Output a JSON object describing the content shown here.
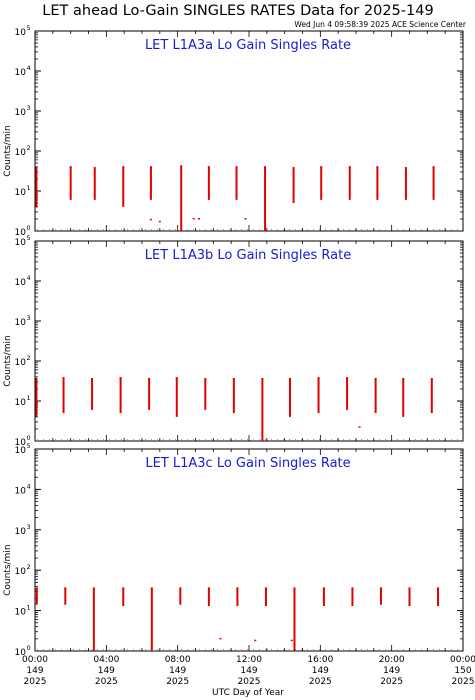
{
  "header": {
    "title": "LET ahead Lo-Gain SINGLES RATES Data for 2025-149",
    "timestamp": "Wed Jun  4 09:58:39 2025 ACE Science Center"
  },
  "colors": {
    "data": "#e00000",
    "panel_title": "#1a1ad0",
    "axes": "#000000"
  },
  "chart_data": [
    {
      "type": "line",
      "title": "LET L1A3a Lo Gain Singles Rate",
      "ylabel": "Counts/min",
      "yscale": "log",
      "ylim": [
        1,
        100000
      ],
      "xlim": [
        0,
        24
      ],
      "spikes": [
        {
          "x": 0.08,
          "lo": 4,
          "hi": 38
        },
        {
          "x": 2.0,
          "lo": 6,
          "hi": 40
        },
        {
          "x": 3.35,
          "lo": 6,
          "hi": 38
        },
        {
          "x": 4.95,
          "lo": 4,
          "hi": 40
        },
        {
          "x": 6.5,
          "lo": 6,
          "hi": 40
        },
        {
          "x": 8.2,
          "lo": 1,
          "hi": 42
        },
        {
          "x": 9.75,
          "lo": 6,
          "hi": 40
        },
        {
          "x": 11.3,
          "lo": 6,
          "hi": 40
        },
        {
          "x": 12.9,
          "lo": 1,
          "hi": 40
        },
        {
          "x": 14.5,
          "lo": 5,
          "hi": 38
        },
        {
          "x": 16.05,
          "lo": 6,
          "hi": 40
        },
        {
          "x": 17.65,
          "lo": 6,
          "hi": 40
        },
        {
          "x": 19.2,
          "lo": 6,
          "hi": 40
        },
        {
          "x": 20.8,
          "lo": 6,
          "hi": 38
        },
        {
          "x": 22.35,
          "lo": 6,
          "hi": 40
        }
      ],
      "dots": [
        {
          "x": 6.5,
          "y": 1.9
        },
        {
          "x": 7.0,
          "y": 1.7
        },
        {
          "x": 8.9,
          "y": 2.0
        },
        {
          "x": 9.2,
          "y": 2.0
        },
        {
          "x": 11.8,
          "y": 2.0
        }
      ]
    },
    {
      "type": "line",
      "title": "LET L1A3b Lo Gain Singles Rate",
      "ylabel": "Counts/min",
      "yscale": "log",
      "ylim": [
        1,
        100000
      ],
      "xlim": [
        0,
        24
      ],
      "spikes": [
        {
          "x": 0.08,
          "lo": 4,
          "hi": 36
        },
        {
          "x": 1.6,
          "lo": 5,
          "hi": 38
        },
        {
          "x": 3.2,
          "lo": 6,
          "hi": 36
        },
        {
          "x": 4.8,
          "lo": 5,
          "hi": 38
        },
        {
          "x": 6.4,
          "lo": 6,
          "hi": 36
        },
        {
          "x": 7.95,
          "lo": 4,
          "hi": 38
        },
        {
          "x": 9.55,
          "lo": 6,
          "hi": 36
        },
        {
          "x": 11.15,
          "lo": 5,
          "hi": 36
        },
        {
          "x": 12.75,
          "lo": 1,
          "hi": 36
        },
        {
          "x": 14.3,
          "lo": 4,
          "hi": 36
        },
        {
          "x": 15.9,
          "lo": 5,
          "hi": 38
        },
        {
          "x": 17.5,
          "lo": 6,
          "hi": 38
        },
        {
          "x": 19.1,
          "lo": 5,
          "hi": 36
        },
        {
          "x": 20.65,
          "lo": 4,
          "hi": 36
        },
        {
          "x": 22.25,
          "lo": 5,
          "hi": 36
        }
      ],
      "dots": [
        {
          "x": 18.2,
          "y": 2.2
        }
      ]
    },
    {
      "type": "line",
      "title": "LET L1A3c Lo Gain Singles Rate",
      "ylabel": "Counts/min",
      "yscale": "log",
      "ylim": [
        1,
        100000
      ],
      "xlim": [
        0,
        24
      ],
      "spikes": [
        {
          "x": 0.1,
          "lo": 14,
          "hi": 36
        },
        {
          "x": 1.7,
          "lo": 14,
          "hi": 36
        },
        {
          "x": 3.3,
          "lo": 1,
          "hi": 36
        },
        {
          "x": 4.95,
          "lo": 13,
          "hi": 36
        },
        {
          "x": 6.55,
          "lo": 1,
          "hi": 36
        },
        {
          "x": 8.15,
          "lo": 14,
          "hi": 36
        },
        {
          "x": 9.75,
          "lo": 13,
          "hi": 36
        },
        {
          "x": 11.35,
          "lo": 13,
          "hi": 36
        },
        {
          "x": 12.95,
          "lo": 13,
          "hi": 36
        },
        {
          "x": 14.55,
          "lo": 1,
          "hi": 36
        },
        {
          "x": 16.2,
          "lo": 13,
          "hi": 36
        },
        {
          "x": 17.8,
          "lo": 13,
          "hi": 36
        },
        {
          "x": 19.4,
          "lo": 14,
          "hi": 36
        },
        {
          "x": 21.0,
          "lo": 13,
          "hi": 36
        },
        {
          "x": 22.6,
          "lo": 13,
          "hi": 36
        }
      ],
      "dots": [
        {
          "x": 12.35,
          "y": 1.8
        },
        {
          "x": 14.4,
          "y": 1.8
        },
        {
          "x": 10.4,
          "y": 2.0
        }
      ]
    }
  ],
  "y_ticks": [
    {
      "value": 1,
      "base": "10",
      "exp": "0"
    },
    {
      "value": 10,
      "base": "10",
      "exp": "1"
    },
    {
      "value": 100,
      "base": "10",
      "exp": "2"
    },
    {
      "value": 1000,
      "base": "10",
      "exp": "3"
    },
    {
      "value": 10000,
      "base": "10",
      "exp": "4"
    },
    {
      "value": 100000,
      "base": "10",
      "exp": "5"
    }
  ],
  "x_ticks": [
    {
      "value": 0,
      "time": "00:00",
      "day": "149",
      "year": "2025"
    },
    {
      "value": 4,
      "time": "04:00",
      "day": "149",
      "year": "2025"
    },
    {
      "value": 8,
      "time": "08:00",
      "day": "149",
      "year": "2025"
    },
    {
      "value": 12,
      "time": "12:00",
      "day": "149",
      "year": "2025"
    },
    {
      "value": 16,
      "time": "16:00",
      "day": "149",
      "year": "2025"
    },
    {
      "value": 20,
      "time": "20:00",
      "day": "149",
      "year": "2025"
    },
    {
      "value": 24,
      "time": "00:00",
      "day": "150",
      "year": "2025"
    }
  ],
  "xlabel": "UTC Day of Year"
}
